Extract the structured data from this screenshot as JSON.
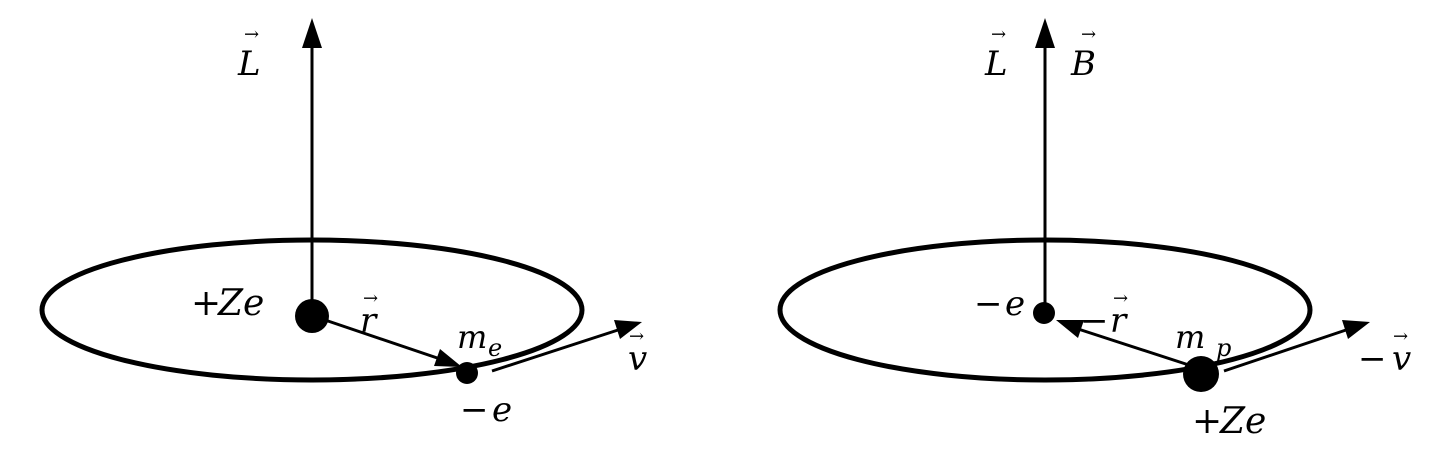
{
  "colors": {
    "ink": "#000000",
    "background": "#ffffff"
  },
  "left": {
    "angular_momentum": "L",
    "nucleus_charge_sign": "+",
    "nucleus_charge": "Ze",
    "radius_vector": "r",
    "electron_mass": "m",
    "electron_mass_sub": "e",
    "electron_charge_sign": "−",
    "electron_charge": "e",
    "velocity": "v"
  },
  "right": {
    "angular_momentum": "L",
    "magnetic_field": "B",
    "electron_charge_sign": "−",
    "electron_charge": "e",
    "radius_sign": "−",
    "radius_vector": "r",
    "nucleus_mass": "m",
    "nucleus_mass_sub": "p",
    "nucleus_charge_sign": "+",
    "nucleus_charge": "Ze",
    "velocity_sign": "−",
    "velocity": "v"
  },
  "vector_mark": "→"
}
